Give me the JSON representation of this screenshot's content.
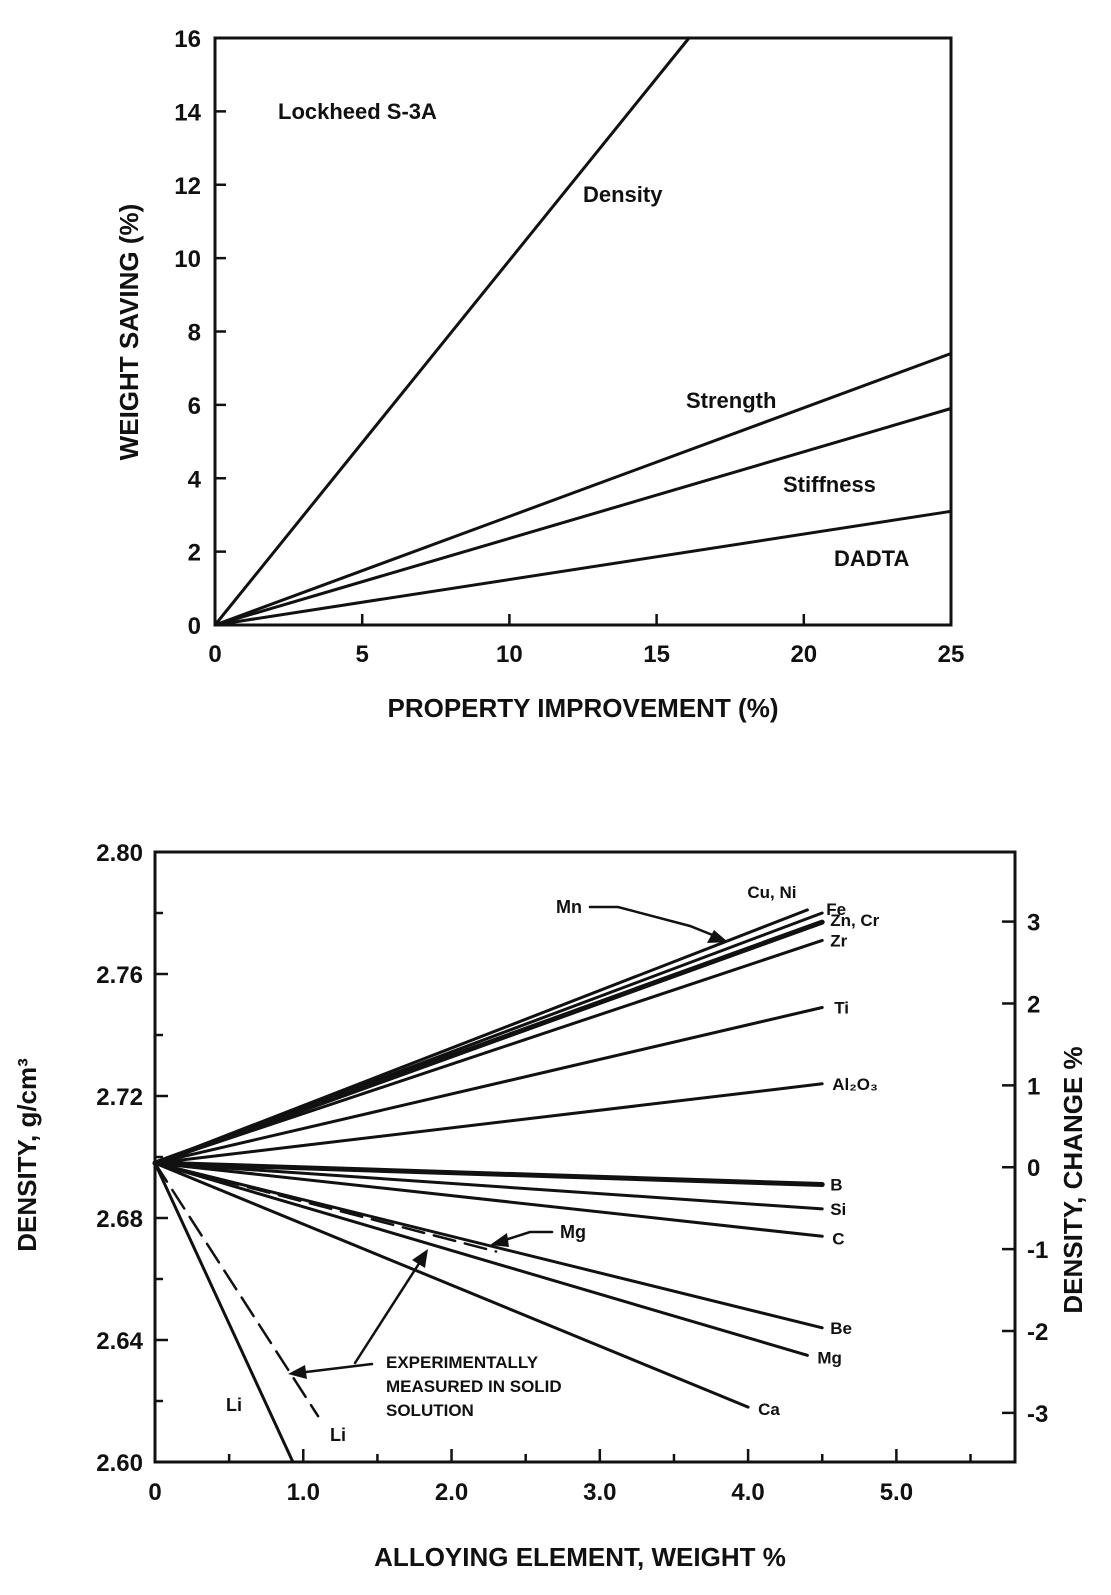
{
  "chart_data": [
    {
      "type": "line",
      "title": "",
      "annotation": "Lockheed S-3A",
      "xlabel": "PROPERTY IMPROVEMENT (%)",
      "ylabel": "WEIGHT SAVING (%)",
      "xlim": [
        0,
        25
      ],
      "ylim": [
        0,
        16
      ],
      "xticks": [
        0,
        5,
        10,
        15,
        20,
        25
      ],
      "yticks": [
        0,
        2,
        4,
        6,
        8,
        10,
        12,
        14,
        16
      ],
      "grid": false,
      "series": [
        {
          "name": "Density",
          "x": [
            0,
            16.1
          ],
          "y": [
            0,
            16
          ]
        },
        {
          "name": "Strength",
          "x": [
            0,
            25
          ],
          "y": [
            0,
            7.4
          ]
        },
        {
          "name": "Stiffness",
          "x": [
            0,
            25
          ],
          "y": [
            0,
            5.9
          ]
        },
        {
          "name": "DADTA",
          "x": [
            0,
            25
          ],
          "y": [
            0,
            3.1
          ]
        }
      ]
    },
    {
      "type": "line",
      "title": "",
      "xlabel": "ALLOYING ELEMENT, WEIGHT %",
      "ylabel": "DENSITY, g/cm³",
      "y2label": "DENSITY, CHANGE %",
      "xlim": [
        0,
        5.8
      ],
      "ylim": [
        2.6,
        2.8
      ],
      "y2lim": [
        -3.6,
        3.85
      ],
      "xticks": [
        0,
        1.0,
        2.0,
        3.0,
        4.0,
        5.0
      ],
      "xtick_labels": [
        "0",
        "1.0",
        "2.0",
        "3.0",
        "4.0",
        "5.0"
      ],
      "yticks": [
        2.6,
        2.64,
        2.68,
        2.72,
        2.76,
        2.8
      ],
      "ytick_labels": [
        "2.60",
        "2.64",
        "2.68",
        "2.72",
        "2.76",
        "2.80"
      ],
      "y2ticks": [
        -3,
        -2,
        -1,
        0,
        1,
        2,
        3
      ],
      "y2tick_labels": [
        "-3",
        "-2",
        "-1",
        "0",
        "1",
        "2",
        "3"
      ],
      "grid": false,
      "series": [
        {
          "name": "Cu, Ni",
          "x": [
            0,
            4.4
          ],
          "y": [
            2.698,
            2.781
          ]
        },
        {
          "name": "Fe",
          "x": [
            0,
            4.5
          ],
          "y": [
            2.698,
            2.78
          ]
        },
        {
          "name": "Zn, Cr",
          "x": [
            0,
            4.5
          ],
          "y": [
            2.698,
            2.777
          ]
        },
        {
          "name": "Zr",
          "x": [
            0,
            4.5
          ],
          "y": [
            2.698,
            2.771
          ]
        },
        {
          "name": "Ti",
          "x": [
            0,
            4.5
          ],
          "y": [
            2.698,
            2.749
          ]
        },
        {
          "name": "Al₂O₃",
          "x": [
            0,
            4.5
          ],
          "y": [
            2.698,
            2.724
          ]
        },
        {
          "name": "B",
          "x": [
            0,
            4.5
          ],
          "y": [
            2.698,
            2.691
          ]
        },
        {
          "name": "Si",
          "x": [
            0,
            4.5
          ],
          "y": [
            2.698,
            2.683
          ]
        },
        {
          "name": "C",
          "x": [
            0,
            4.5
          ],
          "y": [
            2.698,
            2.674
          ]
        },
        {
          "name": "Be",
          "x": [
            0,
            4.5
          ],
          "y": [
            2.698,
            2.644
          ]
        },
        {
          "name": "Mg",
          "x": [
            0,
            4.4
          ],
          "y": [
            2.698,
            2.635
          ]
        },
        {
          "name": "Ca",
          "x": [
            0,
            4.0
          ],
          "y": [
            2.698,
            2.618
          ]
        },
        {
          "name": "Li",
          "x": [
            0,
            0.93
          ],
          "y": [
            2.698,
            2.6
          ]
        }
      ],
      "dashed_series": [
        {
          "name": "Mg",
          "x": [
            0,
            2.3
          ],
          "y": [
            2.698,
            2.669
          ]
        },
        {
          "name": "Li",
          "x": [
            0,
            1.1
          ],
          "y": [
            2.698,
            2.615
          ]
        }
      ],
      "mn_label": "Mn",
      "li_label": "Li",
      "experimental_note": [
        "EXPERIMENTALLY",
        "MEASURED IN SOLID",
        "SOLUTION"
      ]
    }
  ]
}
